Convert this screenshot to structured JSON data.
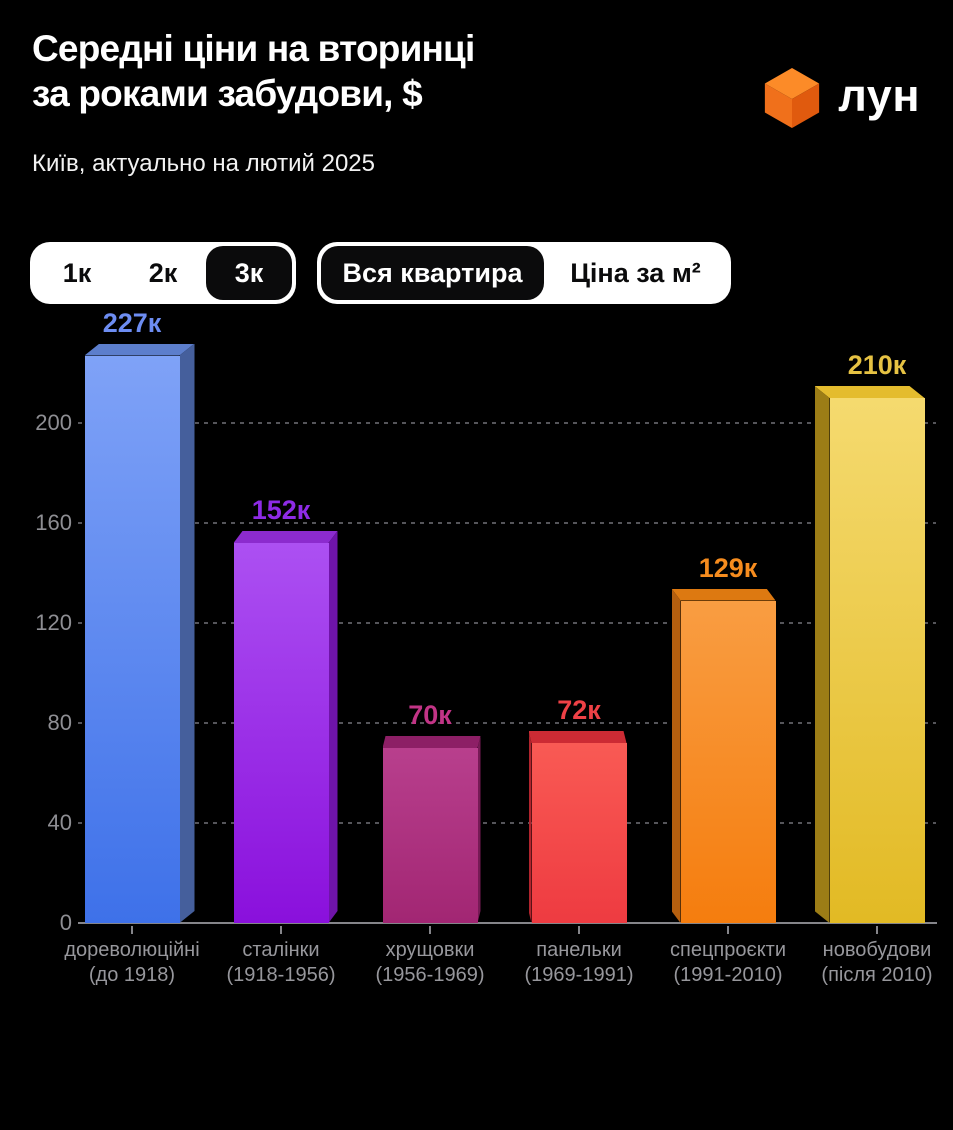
{
  "header": {
    "title_line1": "Середні ціни на вторинці",
    "title_line2": "за роками забудови, $",
    "subtitle": "Київ, актуально на лютий 2025",
    "logo_text": "лун",
    "logo_colors": {
      "top": "#FC8B28",
      "left": "#F0701B",
      "right": "#E05A0E"
    }
  },
  "controls": {
    "rooms": {
      "options": [
        "1к",
        "2к",
        "3к"
      ],
      "selected": "3к"
    },
    "mode": {
      "options": [
        "Вся квартира",
        "Ціна за м²"
      ],
      "selected": "Вся квартира"
    }
  },
  "chart_data": {
    "type": "bar",
    "title": "Середні ціни на вторинці за роками забудови, $",
    "subtitle": "Київ, актуально на лютий 2025",
    "categories": [
      {
        "name": "дореволюційні",
        "years": "(до 1918)"
      },
      {
        "name": "сталінки",
        "years": "(1918-1956)"
      },
      {
        "name": "хрущовки",
        "years": "(1956-1969)"
      },
      {
        "name": "панельки",
        "years": "(1969-1991)"
      },
      {
        "name": "спецпроєкти",
        "years": "(1991-2010)"
      },
      {
        "name": "новобудови",
        "years": "(після 2010)"
      }
    ],
    "values": [
      227,
      152,
      70,
      72,
      129,
      210
    ],
    "value_labels": [
      "227к",
      "152к",
      "70к",
      "72к",
      "129к",
      "210к"
    ],
    "yticks": [
      0,
      40,
      80,
      120,
      160,
      200
    ],
    "ylim": [
      0,
      240
    ],
    "grid": "horizontal-dashed",
    "legend": "none",
    "axis_color": "#85858A",
    "gridline_color": "#55555A",
    "tick_label_color": "#8E8E93",
    "category_label_color": "#97979C",
    "bar_styles": [
      {
        "label_color": "#6D8DF2",
        "front_top": "#7FA2F7",
        "front_bottom": "#3E71E9",
        "top": "#5C7ECC",
        "side": "#455F9C"
      },
      {
        "label_color": "#8E2BE6",
        "front_top": "#AC50F2",
        "front_bottom": "#8A10DC",
        "top": "#8C2BCE",
        "side": "#6F14A9"
      },
      {
        "label_color": "#C23486",
        "front_top": "#B83F8D",
        "front_bottom": "#A22673",
        "top": "#8D1F66",
        "side": "#761A55"
      },
      {
        "label_color": "#EF4146",
        "front_top": "#F95A54",
        "front_bottom": "#EE3B41",
        "top": "#CC2B34",
        "side": "#B0242D"
      },
      {
        "label_color": "#F68C1E",
        "front_top": "#F99D42",
        "front_bottom": "#F57D0E",
        "top": "#DD7911",
        "side": "#B55F0F"
      },
      {
        "label_color": "#E6C243",
        "front_top": "#F5DA6F",
        "front_bottom": "#E2BA24",
        "top": "#E4BC2E",
        "side": "#9C7D16"
      }
    ]
  }
}
